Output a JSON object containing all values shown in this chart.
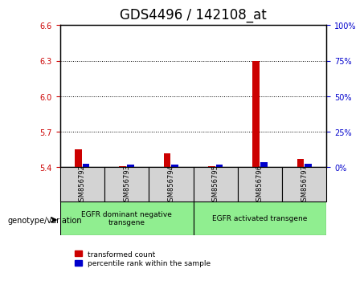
{
  "title": "GDS4496 / 142108_at",
  "samples": [
    "GSM856792",
    "GSM856793",
    "GSM856794",
    "GSM856795",
    "GSM856796",
    "GSM856797"
  ],
  "red_values": [
    5.55,
    5.41,
    5.52,
    5.41,
    6.3,
    5.47
  ],
  "blue_values": [
    5.43,
    5.42,
    5.42,
    5.42,
    5.44,
    5.43
  ],
  "red_base": 5.4,
  "blue_base": 5.4,
  "ylim": [
    5.4,
    6.6
  ],
  "yticks_left": [
    5.4,
    5.7,
    6.0,
    6.3,
    6.6
  ],
  "yticks_right": [
    0,
    25,
    50,
    75,
    100
  ],
  "right_ylim": [
    0,
    100
  ],
  "group1_label": "EGFR dominant negative\ntransgene",
  "group2_label": "EGFR activated transgene",
  "legend_red": "transformed count",
  "legend_blue": "percentile rank within the sample",
  "genotype_label": "genotype/variation",
  "bar_width": 0.35,
  "red_color": "#cc0000",
  "blue_color": "#0000cc",
  "group_bg_color": "#90EE90",
  "sample_bg_color": "#d3d3d3",
  "title_fontsize": 12,
  "tick_label_fontsize": 7,
  "axis_label_fontsize": 8
}
